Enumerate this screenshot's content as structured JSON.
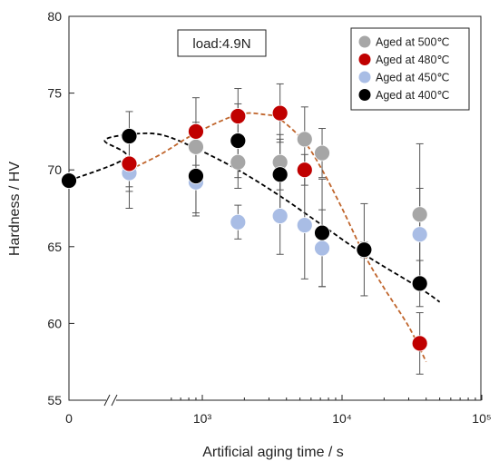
{
  "chart_data": {
    "type": "scatter",
    "xlabel": "Artificial aging time / s",
    "ylabel": "Hardness / HV",
    "x_scale": "log (broken axis, unaged point at 0)",
    "xlim": [
      0,
      100000
    ],
    "ylim": [
      55,
      80
    ],
    "x_ticks": [
      {
        "label": "0",
        "value": 0
      },
      {
        "label": "10³",
        "value": 1000
      },
      {
        "label": "10⁴",
        "value": 10000
      },
      {
        "label": "10⁵",
        "value": 100000
      }
    ],
    "y_ticks": [
      "55",
      "60",
      "65",
      "70",
      "75",
      "80"
    ],
    "annotation": "load:4.9N",
    "legend_position": "top-right",
    "grid": false,
    "series": [
      {
        "name": "Aged at 500℃",
        "color": "#a6a6a6",
        "points": [
          {
            "x": 0,
            "y": 69.3,
            "err": 0
          },
          {
            "x": 300,
            "y": 70.2,
            "err": 1.6
          },
          {
            "x": 900,
            "y": 71.5,
            "err": 1.6
          },
          {
            "x": 1800,
            "y": 70.5,
            "err": 1.7
          },
          {
            "x": 3600,
            "y": 70.5,
            "err": 1.8
          },
          {
            "x": 5400,
            "y": 72.0,
            "err": 2.1
          },
          {
            "x": 7200,
            "y": 71.1,
            "err": 1.6
          },
          {
            "x": 36000,
            "y": 67.1,
            "err": 4.6
          }
        ]
      },
      {
        "name": "Aged at 480℃",
        "color": "#c00000",
        "points": [
          {
            "x": 0,
            "y": 69.3,
            "err": 0
          },
          {
            "x": 300,
            "y": 70.4,
            "err": 1.5
          },
          {
            "x": 900,
            "y": 72.5,
            "err": 2.2
          },
          {
            "x": 1800,
            "y": 73.5,
            "err": 1.8
          },
          {
            "x": 3600,
            "y": 73.7,
            "err": 1.9
          },
          {
            "x": 5400,
            "y": 70.0,
            "err": 1.0
          },
          {
            "x": 14400,
            "y": 64.8,
            "err": 0.5
          },
          {
            "x": 36000,
            "y": 58.7,
            "err": 2.0
          }
        ]
      },
      {
        "name": "Aged at 450℃",
        "color": "#a9bde5",
        "points": [
          {
            "x": 0,
            "y": 69.3,
            "err": 0
          },
          {
            "x": 300,
            "y": 69.8,
            "err": 2.3
          },
          {
            "x": 900,
            "y": 69.2,
            "err": 2.0
          },
          {
            "x": 1800,
            "y": 66.6,
            "err": 1.1
          },
          {
            "x": 3600,
            "y": 67.0,
            "err": 2.5
          },
          {
            "x": 5400,
            "y": 66.4,
            "err": 3.5
          },
          {
            "x": 7200,
            "y": 64.9,
            "err": 2.5
          },
          {
            "x": 36000,
            "y": 65.8,
            "err": 3.0
          }
        ]
      },
      {
        "name": "Aged at 400℃",
        "color": "#000000",
        "points": [
          {
            "x": 0,
            "y": 69.3,
            "err": 0
          },
          {
            "x": 300,
            "y": 72.2,
            "err": 1.6
          },
          {
            "x": 900,
            "y": 69.6,
            "err": 2.6
          },
          {
            "x": 1800,
            "y": 71.9,
            "err": 2.4
          },
          {
            "x": 3600,
            "y": 69.7,
            "err": 2.3
          },
          {
            "x": 7200,
            "y": 65.9,
            "err": 3.5
          },
          {
            "x": 14400,
            "y": 64.8,
            "err": 3.0
          },
          {
            "x": 36000,
            "y": 62.6,
            "err": 1.5
          }
        ]
      }
    ],
    "trend_lines": [
      {
        "series": "Aged at 400℃",
        "color": "#000000",
        "style": "dashed",
        "points": [
          [
            0,
            69.3
          ],
          [
            100,
            70.8
          ],
          [
            200,
            71.9
          ],
          [
            300,
            72.3
          ],
          [
            500,
            72.3
          ],
          [
            900,
            71.4
          ],
          [
            1800,
            70.0
          ],
          [
            3600,
            68.3
          ],
          [
            7200,
            66.4
          ],
          [
            14400,
            64.5
          ],
          [
            36000,
            62.3
          ],
          [
            50000,
            61.4
          ]
        ]
      },
      {
        "series": "Aged at 480℃",
        "color": "#c0652c",
        "style": "dashed",
        "points": [
          [
            300,
            70.0
          ],
          [
            500,
            71.0
          ],
          [
            900,
            72.4
          ],
          [
            1800,
            73.6
          ],
          [
            2800,
            73.6
          ],
          [
            3600,
            73.3
          ],
          [
            5400,
            71.8
          ],
          [
            7200,
            70.0
          ],
          [
            10000,
            67.5
          ],
          [
            14400,
            64.5
          ],
          [
            20000,
            62.3
          ],
          [
            30000,
            59.8
          ],
          [
            40000,
            57.5
          ]
        ]
      }
    ]
  }
}
